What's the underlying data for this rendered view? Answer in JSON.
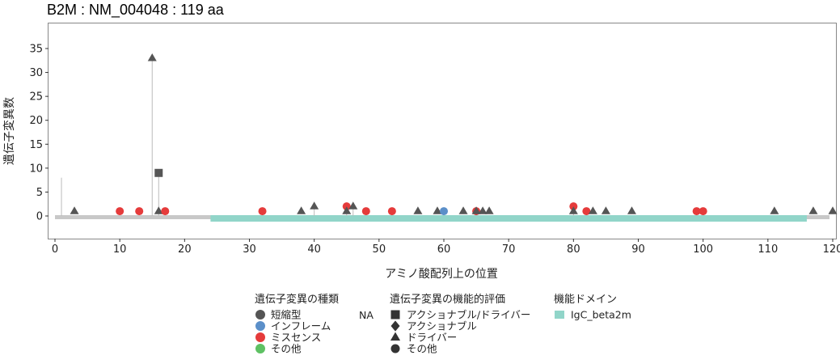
{
  "chart_data": {
    "type": "scatter",
    "title": "B2M : NM_004048 : 119 aa",
    "xlabel": "アミノ酸配列上の位置",
    "ylabel": "遺伝子変異数",
    "xlim": [
      -1,
      120
    ],
    "ylim": [
      -5,
      40
    ],
    "x_ticks": [
      0,
      10,
      20,
      30,
      40,
      50,
      60,
      70,
      80,
      90,
      100,
      110,
      120
    ],
    "y_ticks": [
      0,
      5,
      10,
      15,
      20,
      25,
      30,
      35
    ],
    "grid": false,
    "protein_length": 119,
    "domains": [
      {
        "name": "IgC_beta2m",
        "start": 24,
        "end": 116,
        "color": "#91d5c9"
      }
    ],
    "stems": [
      {
        "x": 1,
        "y": 8
      },
      {
        "x": 15,
        "y": 33
      },
      {
        "x": 16,
        "y": 9
      },
      {
        "x": 40,
        "y": 2
      },
      {
        "x": 45,
        "y": 2
      },
      {
        "x": 46,
        "y": 2
      },
      {
        "x": 80,
        "y": 2
      }
    ],
    "points": [
      {
        "x": 3,
        "y": 1,
        "type": "none",
        "eval": "driver"
      },
      {
        "x": 10,
        "y": 1,
        "type": "missense",
        "eval": "other"
      },
      {
        "x": 13,
        "y": 1,
        "type": "missense",
        "eval": "other"
      },
      {
        "x": 15,
        "y": 33,
        "type": "none",
        "eval": "driver"
      },
      {
        "x": 16,
        "y": 9,
        "type": "none",
        "eval": "actionable_driver"
      },
      {
        "x": 16,
        "y": 1,
        "type": "none",
        "eval": "driver"
      },
      {
        "x": 17,
        "y": 1,
        "type": "missense",
        "eval": "other"
      },
      {
        "x": 32,
        "y": 1,
        "type": "missense",
        "eval": "other"
      },
      {
        "x": 38,
        "y": 1,
        "type": "none",
        "eval": "driver"
      },
      {
        "x": 40,
        "y": 2,
        "type": "none",
        "eval": "driver"
      },
      {
        "x": 45,
        "y": 2,
        "type": "missense",
        "eval": "other"
      },
      {
        "x": 45,
        "y": 1,
        "type": "none",
        "eval": "driver"
      },
      {
        "x": 46,
        "y": 2,
        "type": "none",
        "eval": "driver"
      },
      {
        "x": 48,
        "y": 1,
        "type": "missense",
        "eval": "other"
      },
      {
        "x": 52,
        "y": 1,
        "type": "missense",
        "eval": "other"
      },
      {
        "x": 56,
        "y": 1,
        "type": "none",
        "eval": "driver"
      },
      {
        "x": 59,
        "y": 1,
        "type": "none",
        "eval": "driver"
      },
      {
        "x": 60,
        "y": 1,
        "type": "inframe",
        "eval": "other"
      },
      {
        "x": 63,
        "y": 1,
        "type": "none",
        "eval": "driver"
      },
      {
        "x": 65,
        "y": 1,
        "type": "missense",
        "eval": "other"
      },
      {
        "x": 65,
        "y": 1,
        "type": "none",
        "eval": "driver"
      },
      {
        "x": 66,
        "y": 1,
        "type": "none",
        "eval": "driver"
      },
      {
        "x": 67,
        "y": 1,
        "type": "none",
        "eval": "driver"
      },
      {
        "x": 80,
        "y": 2,
        "type": "missense",
        "eval": "other"
      },
      {
        "x": 80,
        "y": 1,
        "type": "none",
        "eval": "driver"
      },
      {
        "x": 82,
        "y": 1,
        "type": "missense",
        "eval": "other"
      },
      {
        "x": 83,
        "y": 1,
        "type": "none",
        "eval": "driver"
      },
      {
        "x": 85,
        "y": 1,
        "type": "none",
        "eval": "driver"
      },
      {
        "x": 89,
        "y": 1,
        "type": "none",
        "eval": "driver"
      },
      {
        "x": 99,
        "y": 1,
        "type": "missense",
        "eval": "other"
      },
      {
        "x": 100,
        "y": 1,
        "type": "missense",
        "eval": "other"
      },
      {
        "x": 111,
        "y": 1,
        "type": "none",
        "eval": "driver"
      },
      {
        "x": 117,
        "y": 1,
        "type": "none",
        "eval": "driver"
      },
      {
        "x": 120,
        "y": 1,
        "type": "none",
        "eval": "driver"
      }
    ],
    "type_colors": {
      "truncating": "#555555",
      "inframe": "#5b8fc9",
      "missense": "#e53b3b",
      "other": "#5ec163",
      "none": "#555555"
    },
    "legend": {
      "type_title": "遺伝子変異の種類",
      "type_items": [
        {
          "label": "短縮型",
          "key": "truncating"
        },
        {
          "label": "インフレーム",
          "key": "inframe"
        },
        {
          "label": "ミスセンス",
          "key": "missense"
        },
        {
          "label": "その他",
          "key": "other"
        }
      ],
      "type_na": "NA",
      "eval_title": "遺伝子変異の機能的評価",
      "eval_items": [
        {
          "label": "アクショナブル/ドライバー",
          "shape": "square"
        },
        {
          "label": "アクショナブル",
          "shape": "diamond"
        },
        {
          "label": "ドライバー",
          "shape": "triangle"
        },
        {
          "label": "その他",
          "shape": "circle"
        }
      ],
      "domain_title": "機能ドメイン",
      "domain_items": [
        {
          "label": "IgC_beta2m",
          "color": "#91d5c9"
        }
      ]
    }
  }
}
